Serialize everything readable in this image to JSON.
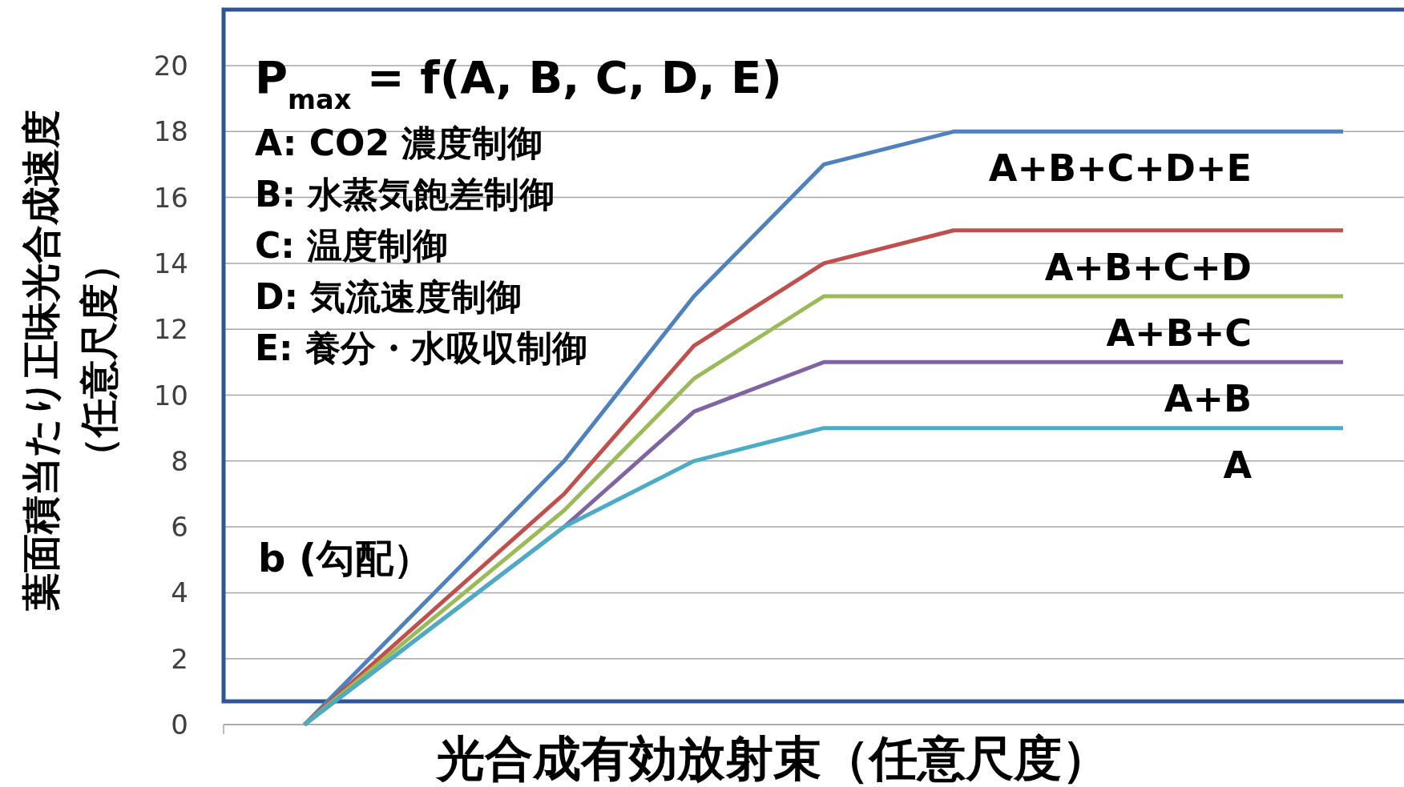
{
  "chart_data": {
    "type": "line",
    "ylabel": "葉面積当たり正味光合成速度（任意尺度）",
    "xlabel": "光合成有効放射束（任意尺度）",
    "categories": [
      null,
      null,
      null,
      null,
      null,
      null,
      null,
      null,
      null
    ],
    "series": [
      {
        "name": "A+B+C+D+E",
        "color": "#4f81bd",
        "values": [
          0,
          4,
          8,
          13,
          17,
          18,
          18,
          18,
          18
        ]
      },
      {
        "name": "A+B+C+D",
        "color": "#c0504d",
        "values": [
          0,
          3.5,
          7,
          11.5,
          14,
          15,
          15,
          15,
          15
        ]
      },
      {
        "name": "A+B+C",
        "color": "#9bbb59",
        "values": [
          0,
          3.25,
          6.5,
          10.5,
          13,
          13,
          13,
          13,
          13
        ]
      },
      {
        "name": "A+B",
        "color": "#8064a2",
        "values": [
          0,
          3,
          6,
          9.5,
          11,
          11,
          11,
          11,
          11
        ]
      },
      {
        "name": "A",
        "color": "#4bacc6",
        "values": [
          0,
          3,
          6,
          8,
          9,
          9,
          9,
          9,
          9
        ]
      }
    ],
    "ylim": [
      0,
      20
    ],
    "yticks": [
      0,
      2,
      4,
      6,
      8,
      10,
      12,
      14,
      16,
      18,
      20
    ],
    "grid": "y",
    "legend": false,
    "tick_labels": "y",
    "marker": "none",
    "annotations": [
      "P$_{max}$ = f(A, B, C, D, E)",
      "A: CO2 濃度制御",
      "B: 水蒸気飽差制御",
      "C: 温度制御",
      "D: 気流速度制御",
      "E: 養分・水吸収制御",
      "b (勾配）"
    ]
  }
}
